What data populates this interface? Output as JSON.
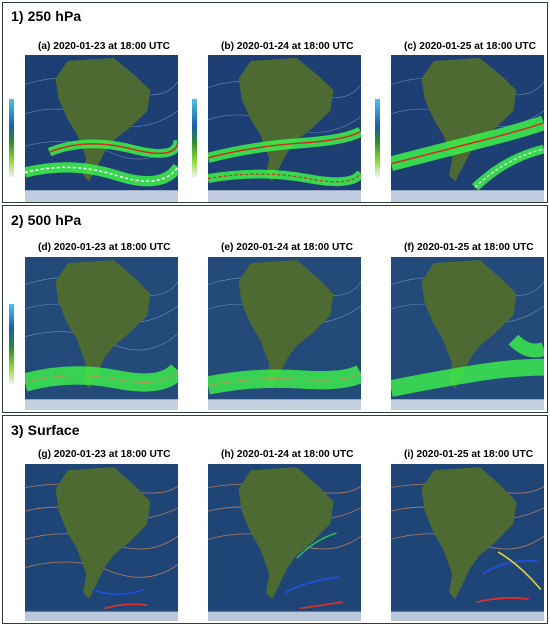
{
  "sections": [
    {
      "title": "1) 250 hPa",
      "panels": [
        {
          "caption": "(a) 2020-01-23 at 18:00 UTC"
        },
        {
          "caption": "(b) 2020-01-24 at 18:00 UTC"
        },
        {
          "caption": "(c) 2020-01-25 at 18:00 UTC"
        }
      ]
    },
    {
      "title": "2) 500 hPa",
      "panels": [
        {
          "caption": "(d) 2020-01-23 at 18:00 UTC"
        },
        {
          "caption": "(e) 2020-01-24 at 18:00 UTC"
        },
        {
          "caption": "(f) 2020-01-25 at 18:00 UTC"
        }
      ]
    },
    {
      "title": "3) Surface",
      "panels": [
        {
          "caption": "(g) 2020-01-23 at 18:00 UTC"
        },
        {
          "caption": "(h) 2020-01-24 at 18:00 UTC"
        },
        {
          "caption": "(i) 2020-01-25 at 18:00 UTC"
        }
      ]
    }
  ],
  "colors": {
    "ocean": "#1d3f73",
    "land": "#4e6a33",
    "jet_green": "#3cf24a",
    "jet_core": "#d62a1a",
    "isobar": "#d48a5a",
    "front_blue": "#1e4fd8",
    "front_red": "#e03030",
    "border": "#2c3e35"
  }
}
